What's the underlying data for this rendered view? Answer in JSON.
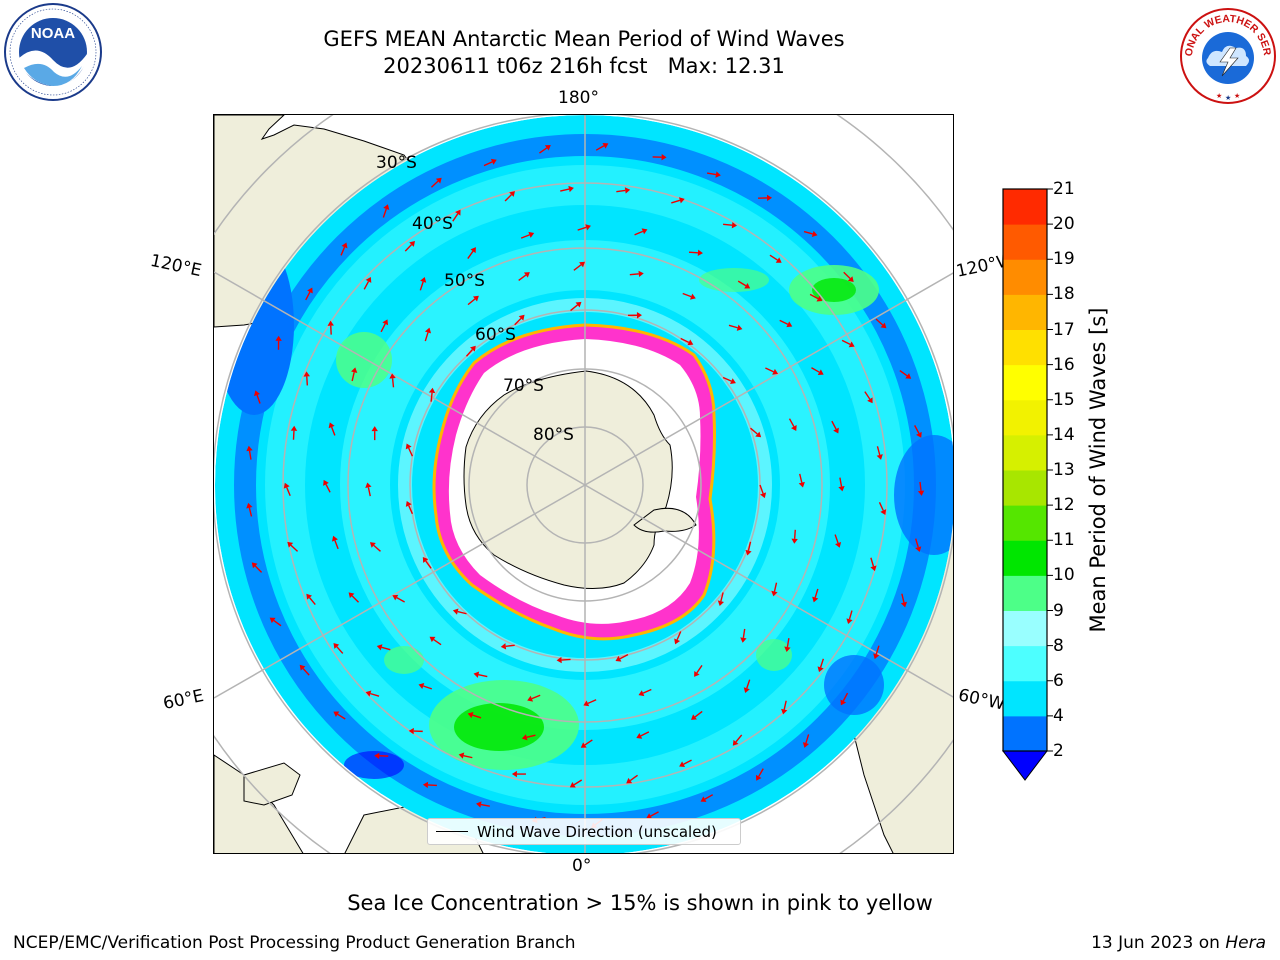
{
  "title": {
    "line1": "GEFS MEAN Antarctic Mean Period of Wind Waves",
    "line2": "20230611 t06z 216h fcst   Max: 12.31"
  },
  "map": {
    "projection": "south-polar-stereographic",
    "longitude_labels": {
      "top": "180°",
      "bottom": "0°",
      "upper_left": "120°E",
      "upper_right": "120°W",
      "lower_left": "60°E",
      "lower_right": "60°W"
    },
    "latitude_labels": [
      "30°S",
      "40°S",
      "50°S",
      "60°S",
      "70°S",
      "80°S"
    ],
    "colors": {
      "land": "#efeedb",
      "ice_interior": "#ffffff",
      "ice_edge": "#ff33cc",
      "arrows": "#ee0000",
      "graticule": "#b4b4b4"
    }
  },
  "legend": {
    "label": "Wind Wave Direction (unscaled)"
  },
  "colorbar": {
    "label": "Mean Period of Wind Waves [s]",
    "ticks": [
      "2",
      "4",
      "6",
      "8",
      "9",
      "10",
      "11",
      "12",
      "13",
      "14",
      "15",
      "16",
      "17",
      "18",
      "19",
      "20",
      "21"
    ],
    "colors": [
      "#0073ff",
      "#00e5ff",
      "#4dffff",
      "#99ffff",
      "#4dff88",
      "#00e600",
      "#55e600",
      "#a8e600",
      "#d6f000",
      "#f2f200",
      "#ffff00",
      "#ffe000",
      "#ffb600",
      "#ff8c00",
      "#ff5a00",
      "#ff2a00"
    ],
    "under_color": "#0000ff"
  },
  "caption": "Sea Ice Concentration > 15% is shown in pink to yellow",
  "footer": {
    "left": "NCEP/EMC/Verification Post Processing Product Generation Branch",
    "right_prefix": "13 Jun 2023 on ",
    "right_host": "Hera"
  },
  "logos": {
    "noaa": "NOAA",
    "nws": "NATIONAL WEATHER SERVICE"
  }
}
